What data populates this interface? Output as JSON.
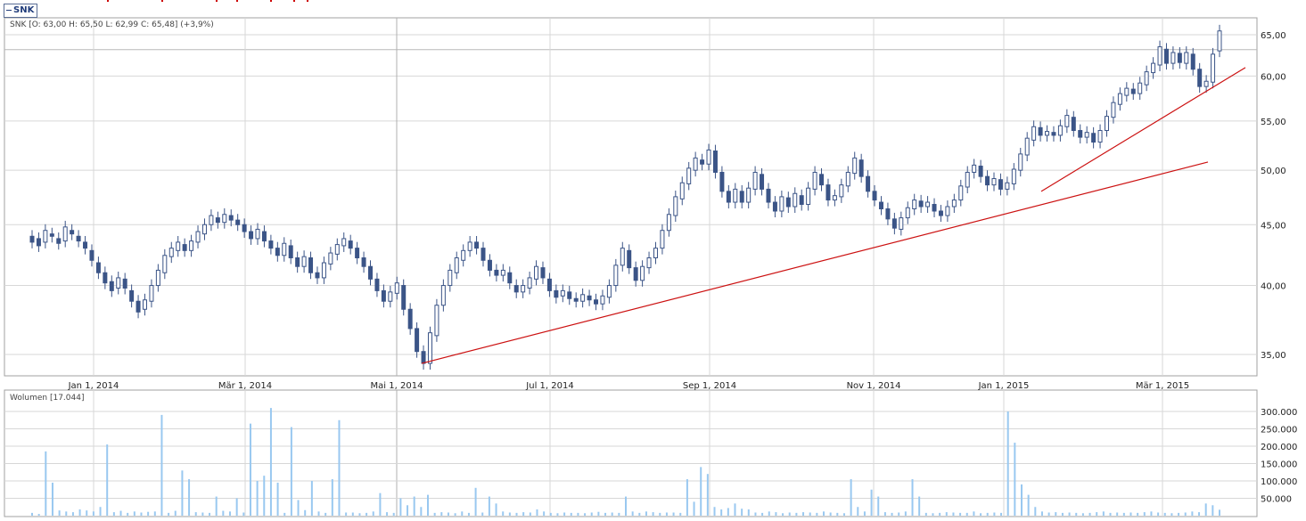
{
  "symbol_tab": "SNK",
  "price_legend": "SNK [O: 63,00  H: 65,50  L: 62,99  C: 65,48] (+3,9%)",
  "volume_legend": "Wolumen [17.044]",
  "colors": {
    "candle": "#3b5487",
    "volume": "#99c8f0",
    "trendline": "#cc1111",
    "grid": "#d7d7d7",
    "pane_border": "#a0a0a0"
  },
  "chart_data": [
    {
      "type": "candlestick",
      "series": [
        {
          "name": "SNK",
          "values": "daily OHLC, approximated (see points)"
        }
      ],
      "x_tick_labels": [
        "Jan 1, 2014",
        "Mär 1, 2014",
        "Mai 1, 2014",
        "Jul 1, 2014",
        "Sep 1, 2014",
        "Nov 1, 2014",
        "Jan 1, 2015",
        "Mär 1, 2015"
      ],
      "y_tick_labels": [
        "65,00",
        "60,00",
        "55,00",
        "50,00",
        "45,00",
        "40,00",
        "35,00"
      ],
      "y_ticks": [
        65,
        60,
        55,
        50,
        45,
        40,
        35
      ],
      "ylim": [
        33.6,
        66.6
      ],
      "y_scale": "log",
      "grid": true,
      "last_close": 65.48,
      "points": [
        [
          44.0,
          43.5
        ],
        [
          43.8,
          43.2
        ],
        [
          43.5,
          44.5
        ],
        [
          44.2,
          44.0
        ],
        [
          43.8,
          43.4
        ],
        [
          43.6,
          44.8
        ],
        [
          44.5,
          44.2
        ],
        [
          44.0,
          43.6
        ],
        [
          43.5,
          43.0
        ],
        [
          42.8,
          42.0
        ],
        [
          41.8,
          41.0
        ],
        [
          41.0,
          40.2
        ],
        [
          40.3,
          39.6
        ],
        [
          39.8,
          40.6
        ],
        [
          40.5,
          39.8
        ],
        [
          39.6,
          38.8
        ],
        [
          38.8,
          38.0
        ],
        [
          38.2,
          38.9
        ],
        [
          38.8,
          40.0
        ],
        [
          40.0,
          41.2
        ],
        [
          41.0,
          42.4
        ],
        [
          42.3,
          43.0
        ],
        [
          42.8,
          43.5
        ],
        [
          43.3,
          42.8
        ],
        [
          42.8,
          43.6
        ],
        [
          43.5,
          44.4
        ],
        [
          44.2,
          45.0
        ],
        [
          45.0,
          45.8
        ],
        [
          45.6,
          45.2
        ],
        [
          45.2,
          45.9
        ],
        [
          45.8,
          45.4
        ],
        [
          45.4,
          45.0
        ],
        [
          45.0,
          44.4
        ],
        [
          44.4,
          43.8
        ],
        [
          43.8,
          44.6
        ],
        [
          44.4,
          43.6
        ],
        [
          43.6,
          43.0
        ],
        [
          43.0,
          42.4
        ],
        [
          42.4,
          43.4
        ],
        [
          43.2,
          42.2
        ],
        [
          42.2,
          41.5
        ],
        [
          41.5,
          42.3
        ],
        [
          42.2,
          41.0
        ],
        [
          41.0,
          40.6
        ],
        [
          40.6,
          41.8
        ],
        [
          41.7,
          42.6
        ],
        [
          42.5,
          43.3
        ],
        [
          43.2,
          43.8
        ],
        [
          43.6,
          43.0
        ],
        [
          43.0,
          42.2
        ],
        [
          42.2,
          41.5
        ],
        [
          41.5,
          40.5
        ],
        [
          40.5,
          39.6
        ],
        [
          39.6,
          38.8
        ],
        [
          38.8,
          39.5
        ],
        [
          39.4,
          40.2
        ],
        [
          40.0,
          38.2
        ],
        [
          38.2,
          36.8
        ],
        [
          36.8,
          35.2
        ],
        [
          35.2,
          34.4
        ],
        [
          34.4,
          36.5
        ],
        [
          36.3,
          38.5
        ],
        [
          38.5,
          40.0
        ],
        [
          40.0,
          41.2
        ],
        [
          41.0,
          42.2
        ],
        [
          42.0,
          42.8
        ],
        [
          42.8,
          43.5
        ],
        [
          43.5,
          43.0
        ],
        [
          43.0,
          42.0
        ],
        [
          42.0,
          41.2
        ],
        [
          41.2,
          40.8
        ],
        [
          40.8,
          41.2
        ],
        [
          41.0,
          40.2
        ],
        [
          40.0,
          39.5
        ],
        [
          39.5,
          40.0
        ],
        [
          39.8,
          40.6
        ],
        [
          40.5,
          41.5
        ],
        [
          41.4,
          40.6
        ],
        [
          40.5,
          39.6
        ],
        [
          39.6,
          39.1
        ],
        [
          39.2,
          39.6
        ],
        [
          39.5,
          39.0
        ],
        [
          39.0,
          38.8
        ],
        [
          38.8,
          39.3
        ],
        [
          39.2,
          38.9
        ],
        [
          38.9,
          38.6
        ],
        [
          38.6,
          39.2
        ],
        [
          39.1,
          40.0
        ],
        [
          40.0,
          41.6
        ],
        [
          41.6,
          43.0
        ],
        [
          42.8,
          41.4
        ],
        [
          41.4,
          40.4
        ],
        [
          40.4,
          41.5
        ],
        [
          41.4,
          42.2
        ],
        [
          42.2,
          43.0
        ],
        [
          43.0,
          44.5
        ],
        [
          44.5,
          45.9
        ],
        [
          45.8,
          47.5
        ],
        [
          47.3,
          48.8
        ],
        [
          48.7,
          50.2
        ],
        [
          50.0,
          51.2
        ],
        [
          51.0,
          50.6
        ],
        [
          50.6,
          52.0
        ],
        [
          51.9,
          49.8
        ],
        [
          49.8,
          48.0
        ],
        [
          48.0,
          47.0
        ],
        [
          47.0,
          48.2
        ],
        [
          48.0,
          47.0
        ],
        [
          47.0,
          48.3
        ],
        [
          48.2,
          49.8
        ],
        [
          49.6,
          48.2
        ],
        [
          48.2,
          47.0
        ],
        [
          47.0,
          46.2
        ],
        [
          46.2,
          47.5
        ],
        [
          47.4,
          46.6
        ],
        [
          46.6,
          47.8
        ],
        [
          47.6,
          46.8
        ],
        [
          46.8,
          48.3
        ],
        [
          48.2,
          49.8
        ],
        [
          49.6,
          48.6
        ],
        [
          48.6,
          47.2
        ],
        [
          47.2,
          47.6
        ],
        [
          47.5,
          48.6
        ],
        [
          48.5,
          49.8
        ],
        [
          49.7,
          51.2
        ],
        [
          51.0,
          49.4
        ],
        [
          49.4,
          48.0
        ],
        [
          48.0,
          47.2
        ],
        [
          47.0,
          46.4
        ],
        [
          46.4,
          45.5
        ],
        [
          45.5,
          44.7
        ],
        [
          44.6,
          45.6
        ],
        [
          45.6,
          46.5
        ],
        [
          46.4,
          47.2
        ],
        [
          47.1,
          46.6
        ],
        [
          46.6,
          47.0
        ],
        [
          46.8,
          46.2
        ],
        [
          46.2,
          45.8
        ],
        [
          45.8,
          46.6
        ],
        [
          46.6,
          47.2
        ],
        [
          47.2,
          48.5
        ],
        [
          48.4,
          49.8
        ],
        [
          49.8,
          50.5
        ],
        [
          50.4,
          49.4
        ],
        [
          49.4,
          48.6
        ],
        [
          48.6,
          49.2
        ],
        [
          49.1,
          48.2
        ],
        [
          48.2,
          48.8
        ],
        [
          48.7,
          50.1
        ],
        [
          50.0,
          51.6
        ],
        [
          51.5,
          53.2
        ],
        [
          53.0,
          54.4
        ],
        [
          54.3,
          53.5
        ],
        [
          53.5,
          53.9
        ],
        [
          53.8,
          53.5
        ],
        [
          53.5,
          54.5
        ],
        [
          54.4,
          55.6
        ],
        [
          55.4,
          54.0
        ],
        [
          54.0,
          53.3
        ],
        [
          53.3,
          53.8
        ],
        [
          53.7,
          52.8
        ],
        [
          52.8,
          54.0
        ],
        [
          54.0,
          55.5
        ],
        [
          55.4,
          57.0
        ],
        [
          56.8,
          58.0
        ],
        [
          57.8,
          58.6
        ],
        [
          58.5,
          58.0
        ],
        [
          58.0,
          59.2
        ],
        [
          59.0,
          60.5
        ],
        [
          60.4,
          61.5
        ],
        [
          61.3,
          63.5
        ],
        [
          63.2,
          61.5
        ],
        [
          61.5,
          62.8
        ],
        [
          62.7,
          61.6
        ],
        [
          61.5,
          62.8
        ],
        [
          62.6,
          60.8
        ],
        [
          60.8,
          58.8
        ],
        [
          58.8,
          59.4
        ],
        [
          59.3,
          62.6
        ],
        [
          63.0,
          65.48
        ]
      ]
    },
    {
      "type": "bar",
      "series": [
        {
          "name": "Wolumen",
          "values": "daily volume, approximated (see volumes)"
        }
      ],
      "y_tick_labels": [
        "300.000",
        "250.000",
        "200.000",
        "150.000",
        "100.000",
        "50.000"
      ],
      "y_ticks": [
        300000,
        250000,
        200000,
        150000,
        100000,
        50000
      ],
      "ylim": [
        0,
        330000
      ],
      "grid": true,
      "last_volume": 17044,
      "volumes": [
        8000,
        5000,
        185000,
        95000,
        15000,
        12000,
        10000,
        18000,
        15000,
        12000,
        25000,
        205000,
        10000,
        14000,
        8000,
        12000,
        9000,
        11000,
        12000,
        290000,
        8000,
        14000,
        130000,
        105000,
        10000,
        9000,
        8000,
        55000,
        14000,
        12000,
        50000,
        9000,
        265000,
        100000,
        115000,
        310000,
        95000,
        8000,
        255000,
        45000,
        16000,
        100000,
        12000,
        8000,
        105000,
        275000,
        9000,
        9000,
        7000,
        8000,
        12000,
        65000,
        10000,
        8000,
        50000,
        30000,
        55000,
        25000,
        60000,
        8000,
        10000,
        9000,
        7000,
        12000,
        8000,
        80000,
        9000,
        55000,
        35000,
        12000,
        9000,
        8000,
        10000,
        9000,
        18000,
        12000,
        8000,
        7000,
        9000,
        8000,
        8000,
        7000,
        9000,
        11000,
        8000,
        9000,
        8000,
        55000,
        12000,
        8000,
        12000,
        10000,
        8000,
        9000,
        9000,
        8000,
        105000,
        40000,
        140000,
        120000,
        25000,
        18000,
        22000,
        35000,
        20000,
        18000,
        9000,
        8000,
        12000,
        10000,
        7000,
        9000,
        8000,
        10000,
        9000,
        8000,
        12000,
        9000,
        8000,
        7000,
        105000,
        25000,
        12000,
        75000,
        55000,
        10000,
        8000,
        9000,
        12000,
        105000,
        55000,
        8000,
        7000,
        8000,
        10000,
        9000,
        8000,
        8000,
        12000,
        7000,
        8000,
        9000,
        8000,
        300000,
        210000,
        90000,
        60000,
        25000,
        12000,
        9000,
        10000,
        8000,
        9000,
        8000,
        7000,
        8000,
        10000,
        12000,
        8000,
        9000,
        8000,
        9000,
        8000,
        10000,
        12000,
        9000,
        8000,
        7000,
        8000,
        9000,
        12000,
        10000,
        35000,
        30000,
        17044
      ]
    }
  ]
}
